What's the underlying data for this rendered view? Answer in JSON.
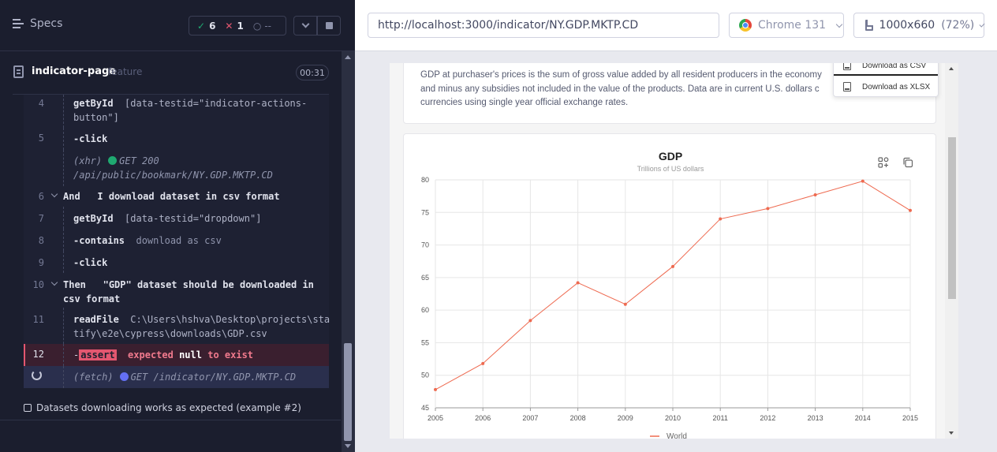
{
  "reporter": {
    "specs_label": "Specs",
    "stats": {
      "passed_icon": "✓",
      "passed": "6",
      "failed_icon": "✕",
      "failed": "1",
      "pending_icon": "○",
      "pending": "--"
    },
    "spec": {
      "name": "indicator-page",
      "type": "feature",
      "duration": "00:31"
    },
    "commands": [
      {
        "num": "4",
        "name": "getById",
        "arg": "[data-testid=\"indicator-actions-",
        "arg2": "button\"]"
      },
      {
        "num": "5",
        "name": "-click"
      },
      {
        "kind": "xhr",
        "label": "(xhr)",
        "method": "GET 200",
        "path": "/api/public/bookmark/NY.GDP.MKTP.CD"
      },
      {
        "num": "6",
        "keyword": "And",
        "text": "I download dataset in csv format"
      },
      {
        "num": "7",
        "name": "getById",
        "arg": "[data-testid=\"dropdown\"]"
      },
      {
        "num": "8",
        "name": "-contains",
        "arg": "download as csv"
      },
      {
        "num": "9",
        "name": "-click"
      },
      {
        "num": "10",
        "keyword": "Then",
        "text": "\"GDP\" dataset should be downloaded in",
        "text2": "csv format"
      },
      {
        "num": "11",
        "name": "readFile",
        "arg": "C:\\Users\\hshva\\Desktop\\projects\\sta",
        "arg2": "tify\\e2e\\cypress\\downloads\\GDP.csv"
      },
      {
        "num": "12",
        "name": "assert",
        "p1": "expected",
        "p2": "null",
        "p3": "to exist"
      },
      {
        "kind": "fetch",
        "label": "(fetch)",
        "method": "GET",
        "path": "/indicator/NY.GDP.MKTP.CD"
      }
    ],
    "test_title": "Datasets downloading works as expected (example #2)"
  },
  "aut": {
    "url": "http://localhost:3000/indicator/NY.GDP.MKTP.CD",
    "browser": "Chrome 131",
    "viewport": "1000x660",
    "scale": "(72%)",
    "description": "GDP at purchaser's prices is the sum of gross value added by all resident producers in the economy plus any product taxes and minus any subsidies not included in the value of the products. Data are in current U.S. dollars converted from domestic currencies using single year official exchange rates.",
    "description_lines": [
      "GDP at purchaser's prices is the sum of gross value added by all resident producers in the economy",
      "and minus any subsidies not included in the value of the products. Data are in current U.S. dollars c",
      "currencies using single year official exchange rates."
    ],
    "dropdown": {
      "csv": "Download as CSV",
      "xlsx": "Download as XLSX"
    },
    "colors": {
      "line": "#ee6a50",
      "accent_green": "#1fa971",
      "accent_red": "#e45770",
      "accent_blue": "#6470f3"
    }
  },
  "chart_data": {
    "type": "line",
    "title": "GDP",
    "subtitle": "Trillions of US dollars",
    "x": [
      "2005",
      "2006",
      "2007",
      "2008",
      "2009",
      "2010",
      "2011",
      "2012",
      "2013",
      "2014",
      "2015"
    ],
    "series": [
      {
        "name": "World",
        "values": [
          47.8,
          51.8,
          58.4,
          64.2,
          60.9,
          66.7,
          74.0,
          75.6,
          77.7,
          79.8,
          75.3
        ]
      }
    ],
    "yticks": [
      45,
      50,
      55,
      60,
      65,
      70,
      75,
      80
    ],
    "ylim": [
      45,
      80
    ],
    "grid": true,
    "legend": "bottom-center"
  }
}
